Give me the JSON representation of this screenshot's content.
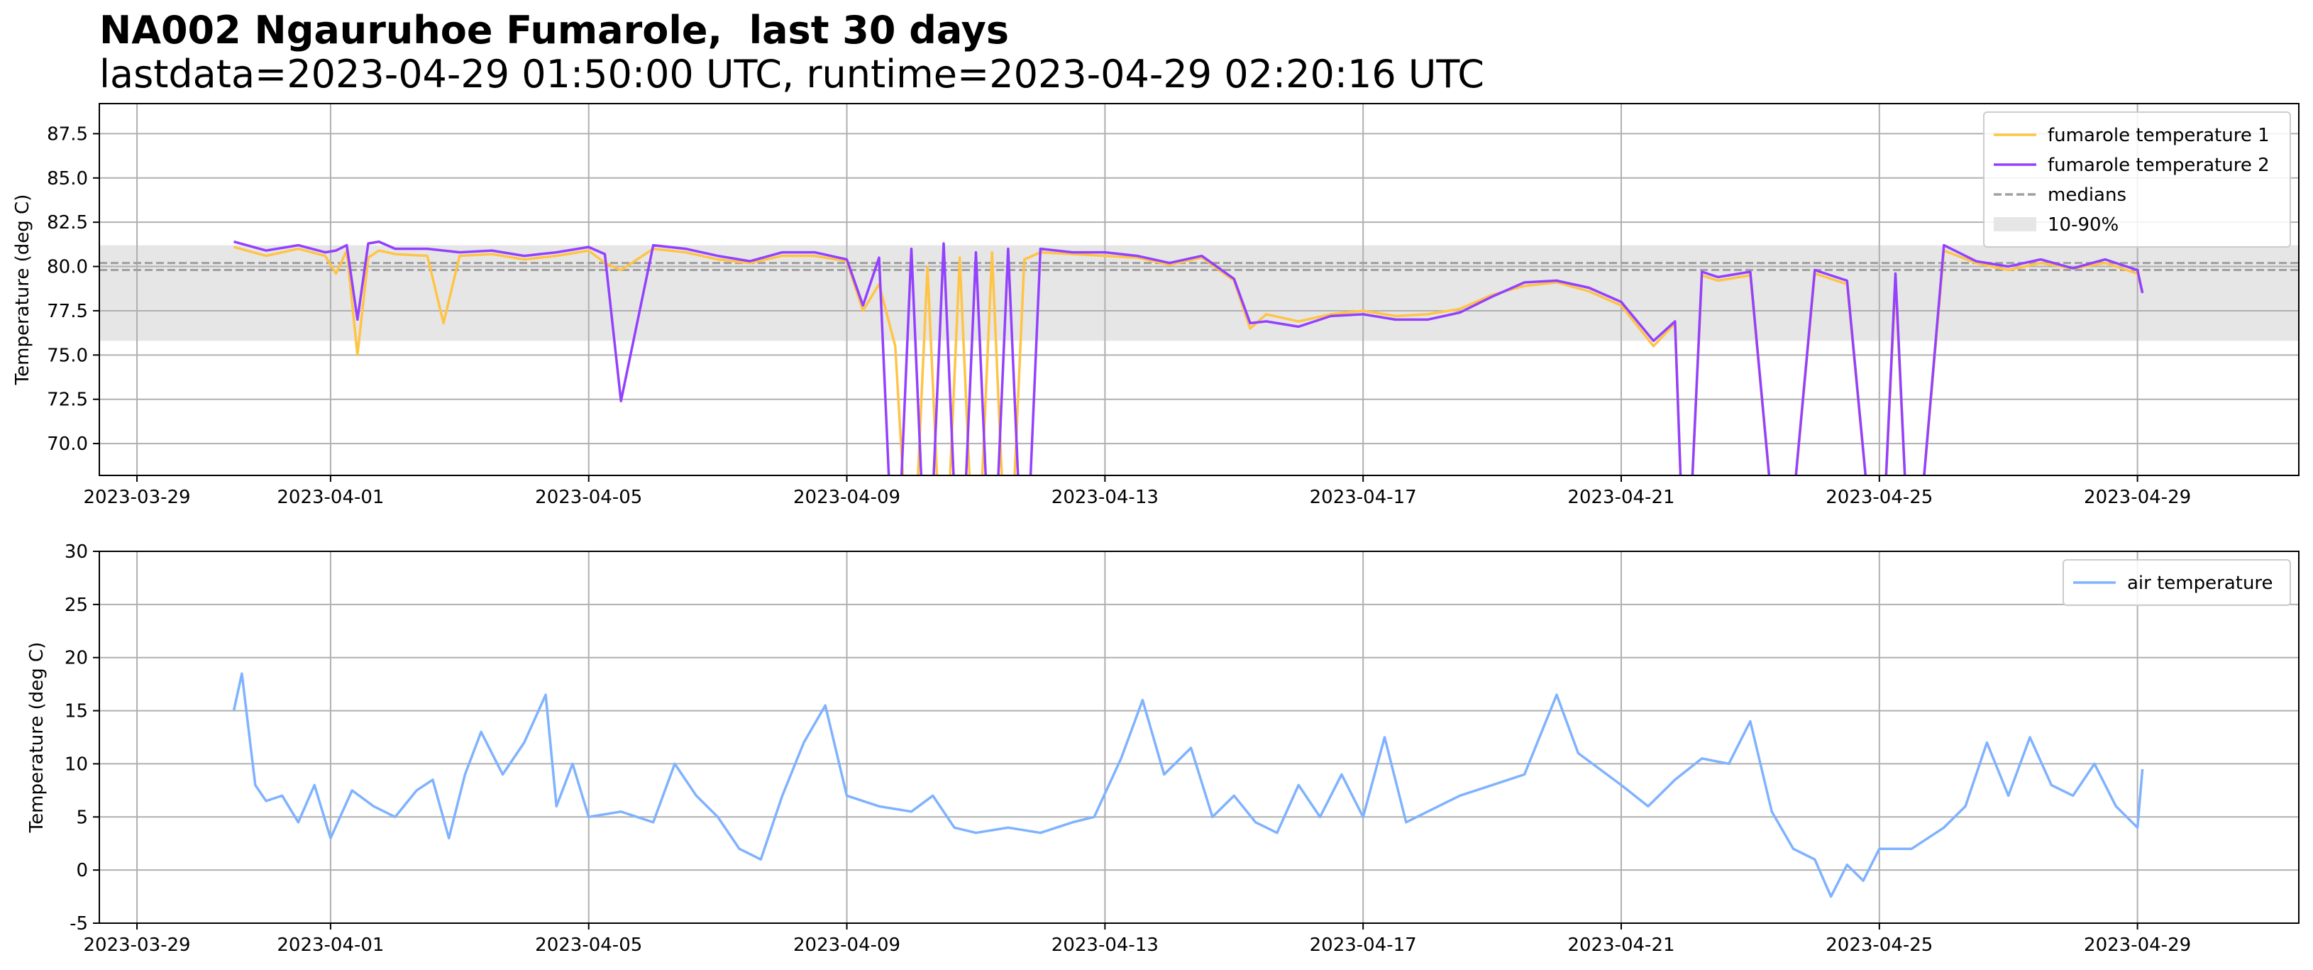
{
  "header": {
    "title": "NA002 Ngauruhoe Fumarole,  last 30 days",
    "subtitle": "lastdata=2023-04-29 01:50:00 UTC, runtime=2023-04-29 02:20:16 UTC"
  },
  "colors": {
    "fumarole_temperature_1": "#ffc445",
    "fumarole_temperature_2": "#9340ff",
    "medians": "#a0a0a0",
    "band": "#e6e6e6",
    "air_temperature": "#7fb2ff",
    "grid": "#b0b0b0"
  },
  "chart_data": [
    {
      "type": "line",
      "ylabel": "Temperature (deg C)",
      "xlabel": "",
      "xlim": [
        "2023-03-28T10:00",
        "2023-05-01T12:00"
      ],
      "ylim": [
        68.2,
        89.2
      ],
      "x_ticks": [
        "2023-03-29",
        "2023-04-01",
        "2023-04-05",
        "2023-04-09",
        "2023-04-13",
        "2023-04-17",
        "2023-04-21",
        "2023-04-25",
        "2023-04-29"
      ],
      "y_ticks": [
        70.0,
        72.5,
        75.0,
        77.5,
        80.0,
        82.5,
        85.0,
        87.5
      ],
      "grid": true,
      "legend_position": "top-right",
      "legend": [
        "fumarole temperature 1",
        "fumarole temperature 2",
        "medians",
        "10-90%"
      ],
      "band_10_90": [
        75.8,
        81.2
      ],
      "medians": [
        79.8,
        80.2
      ],
      "series": [
        {
          "name": "fumarole temperature 1",
          "x": [
            "2023-03-30T12:00",
            "2023-03-31T00:00",
            "2023-03-31T12:00",
            "2023-03-31T22:00",
            "2023-04-01T02:00",
            "2023-04-01T06:00",
            "2023-04-01T10:00",
            "2023-04-01T14:00",
            "2023-04-01T18:00",
            "2023-04-02T00:00",
            "2023-04-02T12:00",
            "2023-04-02T18:00",
            "2023-04-03T00:00",
            "2023-04-03T12:00",
            "2023-04-04T00:00",
            "2023-04-04T12:00",
            "2023-04-05T00:00",
            "2023-04-05T06:00",
            "2023-04-05T12:00",
            "2023-04-06T00:00",
            "2023-04-06T12:00",
            "2023-04-07T00:00",
            "2023-04-07T12:00",
            "2023-04-08T00:00",
            "2023-04-08T12:00",
            "2023-04-09T00:00",
            "2023-04-09T06:00",
            "2023-04-09T12:00",
            "2023-04-09T18:00",
            "2023-04-10T00:00",
            "2023-04-10T06:00",
            "2023-04-10T12:00",
            "2023-04-10T18:00",
            "2023-04-11T00:00",
            "2023-04-11T06:00",
            "2023-04-11T12:00",
            "2023-04-11T18:00",
            "2023-04-12T00:00",
            "2023-04-12T12:00",
            "2023-04-13T00:00",
            "2023-04-13T12:00",
            "2023-04-14T00:00",
            "2023-04-14T12:00",
            "2023-04-15T00:00",
            "2023-04-15T06:00",
            "2023-04-15T12:00",
            "2023-04-16T00:00",
            "2023-04-16T12:00",
            "2023-04-17T00:00",
            "2023-04-17T12:00",
            "2023-04-18T00:00",
            "2023-04-18T12:00",
            "2023-04-19T00:00",
            "2023-04-19T12:00",
            "2023-04-20T00:00",
            "2023-04-20T12:00",
            "2023-04-21T00:00",
            "2023-04-21T12:00",
            "2023-04-21T20:00",
            "2023-04-22T00:00",
            "2023-04-22T06:00",
            "2023-04-22T12:00",
            "2023-04-23T00:00",
            "2023-04-23T12:00",
            "2023-04-24T00:00",
            "2023-04-24T12:00",
            "2023-04-25T00:00",
            "2023-04-25T06:00",
            "2023-04-25T12:00",
            "2023-04-26T00:00",
            "2023-04-26T12:00",
            "2023-04-27T00:00",
            "2023-04-27T12:00",
            "2023-04-28T00:00",
            "2023-04-28T12:00",
            "2023-04-29T00:00",
            "2023-04-29T01:50"
          ],
          "y": [
            81.1,
            80.6,
            81.0,
            80.6,
            79.6,
            80.9,
            75.0,
            80.5,
            80.9,
            80.7,
            80.6,
            76.8,
            80.6,
            80.7,
            80.4,
            80.6,
            80.9,
            80.2,
            79.8,
            81.0,
            80.8,
            80.4,
            80.2,
            80.6,
            80.6,
            80.3,
            77.5,
            79.0,
            75.5,
            60.0,
            80.0,
            60.0,
            80.5,
            60.0,
            80.8,
            60.0,
            80.4,
            80.8,
            80.7,
            80.6,
            80.5,
            80.1,
            80.5,
            79.2,
            76.5,
            77.3,
            76.9,
            77.3,
            77.5,
            77.2,
            77.3,
            77.6,
            78.4,
            78.9,
            79.1,
            78.6,
            77.8,
            75.5,
            76.8,
            60.0,
            79.5,
            79.2,
            79.5,
            60.0,
            79.6,
            79.0,
            60.0,
            79.2,
            60.0,
            80.9,
            80.2,
            79.8,
            80.2,
            79.9,
            80.2,
            79.6,
            78.6
          ]
        },
        {
          "name": "fumarole temperature 2",
          "x": [
            "2023-03-30T12:00",
            "2023-03-31T00:00",
            "2023-03-31T12:00",
            "2023-03-31T22:00",
            "2023-04-01T02:00",
            "2023-04-01T06:00",
            "2023-04-01T10:00",
            "2023-04-01T14:00",
            "2023-04-01T18:00",
            "2023-04-02T00:00",
            "2023-04-02T12:00",
            "2023-04-02T18:00",
            "2023-04-03T00:00",
            "2023-04-03T12:00",
            "2023-04-04T00:00",
            "2023-04-04T12:00",
            "2023-04-05T00:00",
            "2023-04-05T06:00",
            "2023-04-05T12:00",
            "2023-04-06T00:00",
            "2023-04-06T12:00",
            "2023-04-07T00:00",
            "2023-04-07T12:00",
            "2023-04-08T00:00",
            "2023-04-08T12:00",
            "2023-04-09T00:00",
            "2023-04-09T06:00",
            "2023-04-09T12:00",
            "2023-04-09T18:00",
            "2023-04-10T00:00",
            "2023-04-10T06:00",
            "2023-04-10T12:00",
            "2023-04-10T18:00",
            "2023-04-11T00:00",
            "2023-04-11T06:00",
            "2023-04-11T12:00",
            "2023-04-11T18:00",
            "2023-04-12T00:00",
            "2023-04-12T12:00",
            "2023-04-13T00:00",
            "2023-04-13T12:00",
            "2023-04-14T00:00",
            "2023-04-14T12:00",
            "2023-04-15T00:00",
            "2023-04-15T06:00",
            "2023-04-15T12:00",
            "2023-04-16T00:00",
            "2023-04-16T12:00",
            "2023-04-17T00:00",
            "2023-04-17T12:00",
            "2023-04-18T00:00",
            "2023-04-18T12:00",
            "2023-04-19T00:00",
            "2023-04-19T12:00",
            "2023-04-20T00:00",
            "2023-04-20T12:00",
            "2023-04-21T00:00",
            "2023-04-21T12:00",
            "2023-04-21T20:00",
            "2023-04-22T00:00",
            "2023-04-22T06:00",
            "2023-04-22T12:00",
            "2023-04-23T00:00",
            "2023-04-23T12:00",
            "2023-04-24T00:00",
            "2023-04-24T12:00",
            "2023-04-25T00:00",
            "2023-04-25T06:00",
            "2023-04-25T12:00",
            "2023-04-26T00:00",
            "2023-04-26T12:00",
            "2023-04-27T00:00",
            "2023-04-27T12:00",
            "2023-04-28T00:00",
            "2023-04-28T12:00",
            "2023-04-29T00:00",
            "2023-04-29T01:50"
          ],
          "y": [
            81.4,
            80.9,
            81.2,
            80.8,
            80.9,
            81.2,
            77.0,
            81.3,
            81.4,
            81.0,
            81.0,
            80.9,
            80.8,
            80.9,
            80.6,
            80.8,
            81.1,
            80.7,
            72.4,
            81.2,
            81.0,
            80.6,
            80.3,
            80.8,
            80.8,
            80.4,
            77.8,
            80.5,
            60.0,
            81.0,
            60.0,
            81.3,
            60.0,
            80.8,
            60.0,
            81.0,
            60.0,
            81.0,
            80.8,
            80.8,
            80.6,
            80.2,
            80.6,
            79.3,
            76.8,
            76.9,
            76.6,
            77.2,
            77.3,
            77.0,
            77.0,
            77.4,
            78.3,
            79.1,
            79.2,
            78.8,
            78.0,
            75.8,
            76.9,
            60.0,
            79.7,
            79.4,
            79.7,
            60.0,
            79.8,
            79.2,
            60.0,
            79.6,
            60.0,
            81.2,
            80.3,
            80.0,
            80.4,
            79.9,
            80.4,
            79.8,
            78.5
          ]
        }
      ]
    },
    {
      "type": "line",
      "ylabel": "Temperature (deg C)",
      "xlabel": "",
      "xlim": [
        "2023-03-28T10:00",
        "2023-05-01T12:00"
      ],
      "ylim": [
        -5,
        30
      ],
      "x_ticks": [
        "2023-03-29",
        "2023-04-01",
        "2023-04-05",
        "2023-04-09",
        "2023-04-13",
        "2023-04-17",
        "2023-04-21",
        "2023-04-25",
        "2023-04-29"
      ],
      "y_ticks": [
        -5,
        0,
        5,
        10,
        15,
        20,
        25,
        30
      ],
      "grid": true,
      "legend_position": "top-right",
      "legend": [
        "air temperature"
      ],
      "series": [
        {
          "name": "air temperature",
          "x": [
            "2023-03-30T12:00",
            "2023-03-30T15:00",
            "2023-03-30T20:00",
            "2023-03-31T00:00",
            "2023-03-31T06:00",
            "2023-03-31T12:00",
            "2023-03-31T18:00",
            "2023-04-01T00:00",
            "2023-04-01T08:00",
            "2023-04-01T16:00",
            "2023-04-02T00:00",
            "2023-04-02T08:00",
            "2023-04-02T14:00",
            "2023-04-02T20:00",
            "2023-04-03T02:00",
            "2023-04-03T08:00",
            "2023-04-03T16:00",
            "2023-04-04T00:00",
            "2023-04-04T08:00",
            "2023-04-04T12:00",
            "2023-04-04T18:00",
            "2023-04-05T00:00",
            "2023-04-05T12:00",
            "2023-04-06T00:00",
            "2023-04-06T08:00",
            "2023-04-06T16:00",
            "2023-04-07T00:00",
            "2023-04-07T08:00",
            "2023-04-07T16:00",
            "2023-04-08T00:00",
            "2023-04-08T08:00",
            "2023-04-08T16:00",
            "2023-04-09T00:00",
            "2023-04-09T12:00",
            "2023-04-10T00:00",
            "2023-04-10T08:00",
            "2023-04-10T16:00",
            "2023-04-11T00:00",
            "2023-04-11T12:00",
            "2023-04-12T00:00",
            "2023-04-12T12:00",
            "2023-04-12T20:00",
            "2023-04-13T06:00",
            "2023-04-13T14:00",
            "2023-04-13T22:00",
            "2023-04-14T08:00",
            "2023-04-14T16:00",
            "2023-04-15T00:00",
            "2023-04-15T08:00",
            "2023-04-15T16:00",
            "2023-04-16T00:00",
            "2023-04-16T08:00",
            "2023-04-16T16:00",
            "2023-04-17T00:00",
            "2023-04-17T08:00",
            "2023-04-17T16:00",
            "2023-04-18T00:00",
            "2023-04-18T12:00",
            "2023-04-19T00:00",
            "2023-04-19T12:00",
            "2023-04-20T00:00",
            "2023-04-20T08:00",
            "2023-04-20T16:00",
            "2023-04-21T00:00",
            "2023-04-21T10:00",
            "2023-04-21T20:00",
            "2023-04-22T06:00",
            "2023-04-22T16:00",
            "2023-04-23T00:00",
            "2023-04-23T08:00",
            "2023-04-23T16:00",
            "2023-04-24T00:00",
            "2023-04-24T06:00",
            "2023-04-24T12:00",
            "2023-04-24T18:00",
            "2023-04-25T00:00",
            "2023-04-25T12:00",
            "2023-04-26T00:00",
            "2023-04-26T08:00",
            "2023-04-26T16:00",
            "2023-04-27T00:00",
            "2023-04-27T08:00",
            "2023-04-27T16:00",
            "2023-04-28T00:00",
            "2023-04-28T08:00",
            "2023-04-28T16:00",
            "2023-04-29T00:00",
            "2023-04-29T01:50"
          ],
          "y": [
            15.0,
            18.5,
            8.0,
            6.5,
            7.0,
            4.5,
            8.0,
            3.0,
            7.5,
            6.0,
            5.0,
            7.5,
            8.5,
            3.0,
            9.0,
            13.0,
            9.0,
            12.0,
            16.5,
            6.0,
            10.0,
            5.0,
            5.5,
            4.5,
            10.0,
            7.0,
            5.0,
            2.0,
            1.0,
            7.0,
            12.0,
            15.5,
            7.0,
            6.0,
            5.5,
            7.0,
            4.0,
            3.5,
            4.0,
            3.5,
            4.5,
            5.0,
            10.5,
            16.0,
            9.0,
            11.5,
            5.0,
            7.0,
            4.5,
            3.5,
            8.0,
            5.0,
            9.0,
            5.0,
            12.5,
            4.5,
            5.5,
            7.0,
            8.0,
            9.0,
            16.5,
            11.0,
            9.5,
            8.0,
            6.0,
            8.5,
            10.5,
            10.0,
            14.0,
            5.5,
            2.0,
            1.0,
            -2.5,
            0.5,
            -1.0,
            2.0,
            2.0,
            4.0,
            6.0,
            12.0,
            7.0,
            12.5,
            8.0,
            7.0,
            10.0,
            6.0,
            4.0,
            9.5
          ]
        }
      ]
    }
  ]
}
